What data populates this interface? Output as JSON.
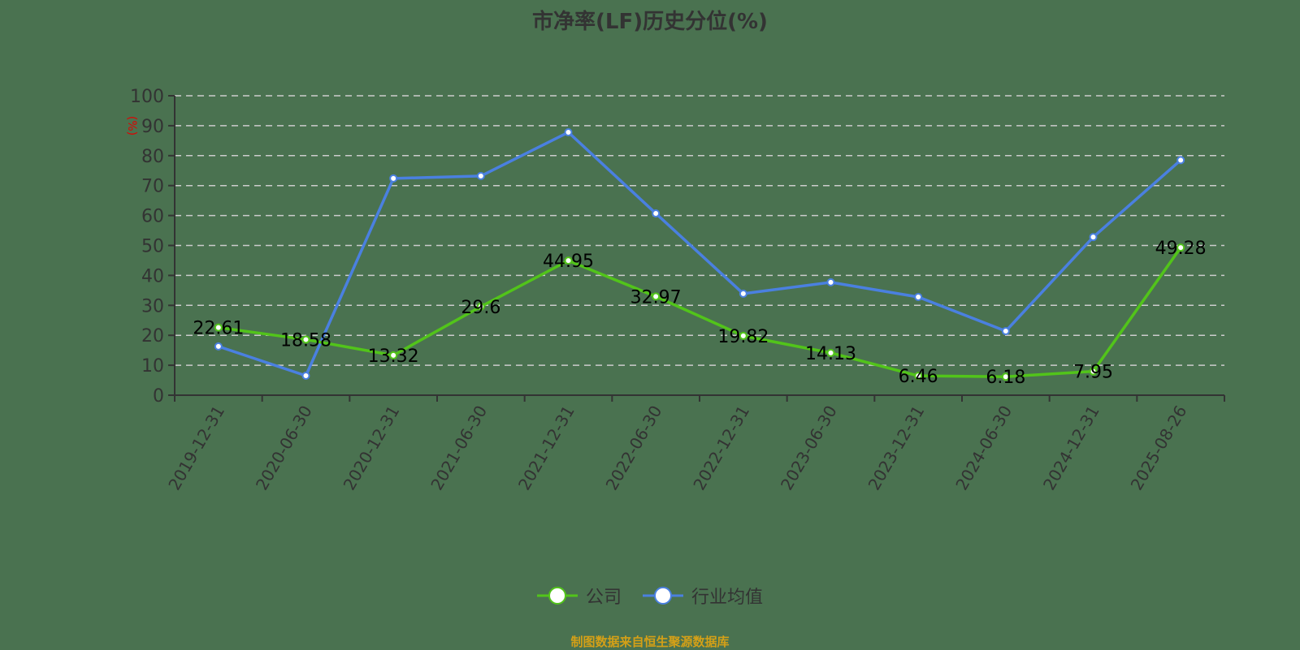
{
  "title": "市净率(LF)历史分位(%)",
  "source_note": "制图数据来自恒生聚源数据库",
  "colors": {
    "background": "#4a7250",
    "company": "#52c41a",
    "industry": "#4a80e0",
    "y_unit": "#e00000",
    "axis": "#333333",
    "grid": "#cccccc",
    "source": "#d4a017"
  },
  "legend": [
    {
      "name": "公司",
      "color": "#52c41a"
    },
    {
      "name": "行业均值",
      "color": "#4a80e0"
    }
  ],
  "chart_data": {
    "type": "line",
    "title": "市净率(LF)历史分位(%)",
    "xlabel": "",
    "ylabel": "(%)",
    "ylim": [
      0,
      100
    ],
    "yticks": [
      0,
      10,
      20,
      30,
      40,
      50,
      60,
      70,
      80,
      90,
      100
    ],
    "grid": true,
    "legend_position": "bottom",
    "categories": [
      "2019-12-31",
      "2020-06-30",
      "2020-12-31",
      "2021-06-30",
      "2021-12-31",
      "2022-06-30",
      "2022-12-31",
      "2023-06-30",
      "2023-12-31",
      "2024-06-30",
      "2024-12-31",
      "2025-08-26"
    ],
    "series": [
      {
        "name": "公司",
        "values": [
          22.61,
          18.58,
          13.32,
          29.6,
          44.95,
          32.97,
          19.82,
          14.13,
          6.46,
          6.18,
          7.95,
          49.28
        ],
        "labels_shown": true
      },
      {
        "name": "行业均值",
        "values": [
          16.3,
          6.5,
          72.4,
          73.2,
          87.8,
          60.7,
          33.9,
          37.7,
          32.8,
          21.4,
          52.8,
          78.5
        ],
        "labels_shown": false
      }
    ]
  }
}
